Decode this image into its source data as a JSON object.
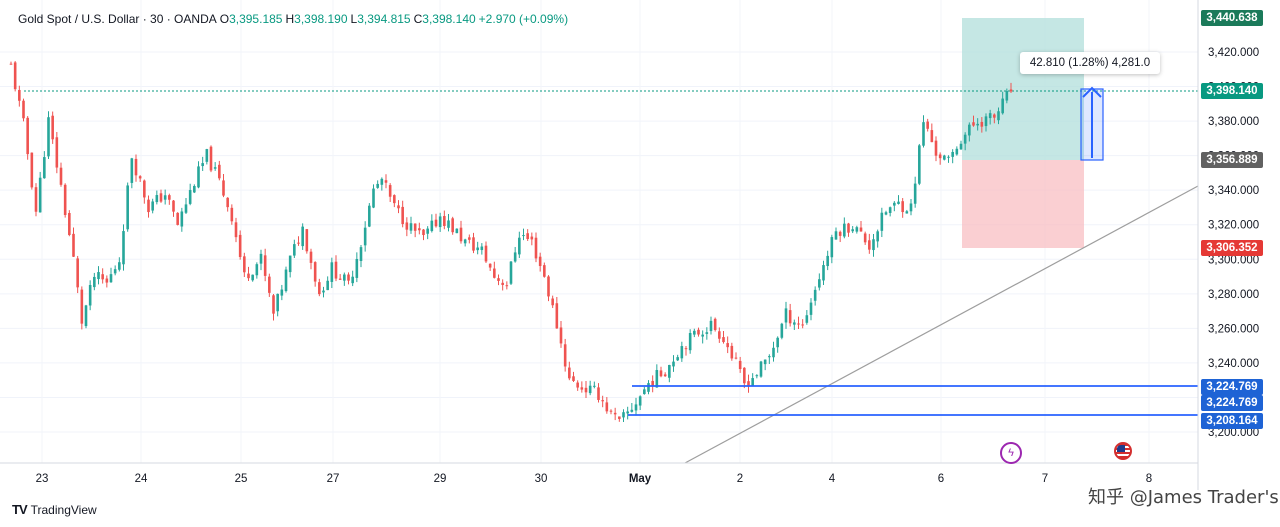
{
  "legend": {
    "symbol": "Gold Spot / U.S. Dollar · 30 · OANDA",
    "o_key": "O",
    "o_val": "3,395.185",
    "h_key": "H",
    "h_val": "3,398.190",
    "l_key": "L",
    "l_val": "3,394.815",
    "c_key": "C",
    "c_val": "3,398.140",
    "change": "+2.970 (+0.09%)"
  },
  "measure_tooltip": "42.810 (1.28%) 4,281.0",
  "price_tags": {
    "target": "3,440.638",
    "current": "3,398.140",
    "entry": "3,356.889",
    "stop": "3,306.352",
    "support_upper_a": "3,224.769",
    "support_upper_b": "3,224.769",
    "support_lower": "3,208.164"
  },
  "colors": {
    "up": "#26a69a",
    "down": "#ef5350",
    "profit_zone": "#b2dfdb",
    "loss_zone": "#f8bbbf",
    "support_line": "#2962ff",
    "trendline": "#9e9e9e",
    "measure": "#2962ff",
    "target_tag": "#1b7a5a",
    "current_tag": "#089981",
    "entry_tag": "#616161",
    "stop_tag": "#e53935",
    "support_tag": "#1e63d5"
  },
  "footer": {
    "brand_mark": "TV",
    "brand_name": "TradingView"
  },
  "watermark": "知乎 @James Trader's",
  "event_icons": [
    "lightning-icon",
    "us-flag-icon"
  ],
  "chart_data": {
    "type": "candlestick",
    "title": "Gold Spot / U.S. Dollar · 30 · OANDA",
    "ylim": [
      3200,
      3450
    ],
    "yticks": [
      "3,420.000",
      "3,400.000",
      "3,380.000",
      "3,360.000",
      "3,340.000",
      "3,320.000",
      "3,300.000",
      "3,280.000",
      "3,260.000",
      "3,240.000",
      "3,220.000",
      "3,200.000"
    ],
    "ytick_values": [
      3420,
      3400,
      3380,
      3360,
      3340,
      3320,
      3300,
      3280,
      3260,
      3240,
      3220,
      3200
    ],
    "xlabels": [
      "23",
      "24",
      "25",
      "27",
      "29",
      "30",
      "May",
      "2",
      "4",
      "6",
      "7",
      "8"
    ],
    "close_path": [
      [
        0,
        3412
      ],
      [
        3,
        3378
      ],
      [
        6,
        3328
      ],
      [
        9,
        3380
      ],
      [
        12,
        3342
      ],
      [
        15,
        3300
      ],
      [
        17,
        3264
      ],
      [
        20,
        3290
      ],
      [
        23,
        3286
      ],
      [
        26,
        3300
      ],
      [
        29,
        3360
      ],
      [
        33,
        3330
      ],
      [
        37,
        3338
      ],
      [
        40,
        3320
      ],
      [
        44,
        3345
      ],
      [
        47,
        3360
      ],
      [
        50,
        3345
      ],
      [
        53,
        3325
      ],
      [
        56,
        3290
      ],
      [
        60,
        3300
      ],
      [
        63,
        3268
      ],
      [
        67,
        3300
      ],
      [
        70,
        3318
      ],
      [
        74,
        3280
      ],
      [
        77,
        3295
      ],
      [
        81,
        3285
      ],
      [
        84,
        3310
      ],
      [
        87,
        3340
      ],
      [
        89,
        3346
      ],
      [
        92,
        3330
      ],
      [
        96,
        3318
      ],
      [
        99,
        3312
      ],
      [
        103,
        3325
      ],
      [
        106,
        3318
      ],
      [
        109,
        3310
      ],
      [
        113,
        3305
      ],
      [
        116,
        3290
      ],
      [
        119,
        3286
      ],
      [
        122,
        3315
      ],
      [
        125,
        3310
      ],
      [
        128,
        3290
      ],
      [
        131,
        3262
      ],
      [
        134,
        3230
      ],
      [
        137,
        3226
      ],
      [
        141,
        3222
      ],
      [
        144,
        3210
      ],
      [
        146,
        3205
      ],
      [
        149,
        3214
      ],
      [
        153,
        3228
      ],
      [
        157,
        3236
      ],
      [
        161,
        3250
      ],
      [
        165,
        3258
      ],
      [
        168,
        3262
      ],
      [
        171,
        3255
      ],
      [
        173,
        3244
      ],
      [
        176,
        3228
      ],
      [
        179,
        3234
      ],
      [
        182,
        3244
      ],
      [
        186,
        3268
      ],
      [
        190,
        3262
      ],
      [
        194,
        3290
      ],
      [
        198,
        3316
      ],
      [
        202,
        3320
      ],
      [
        206,
        3308
      ],
      [
        210,
        3328
      ],
      [
        213,
        3332
      ],
      [
        216,
        3330
      ],
      [
        219,
        3380
      ],
      [
        222,
        3362
      ],
      [
        225,
        3356
      ],
      [
        228,
        3370
      ],
      [
        232,
        3380
      ],
      [
        236,
        3382
      ],
      [
        240,
        3398
      ]
    ]
  }
}
